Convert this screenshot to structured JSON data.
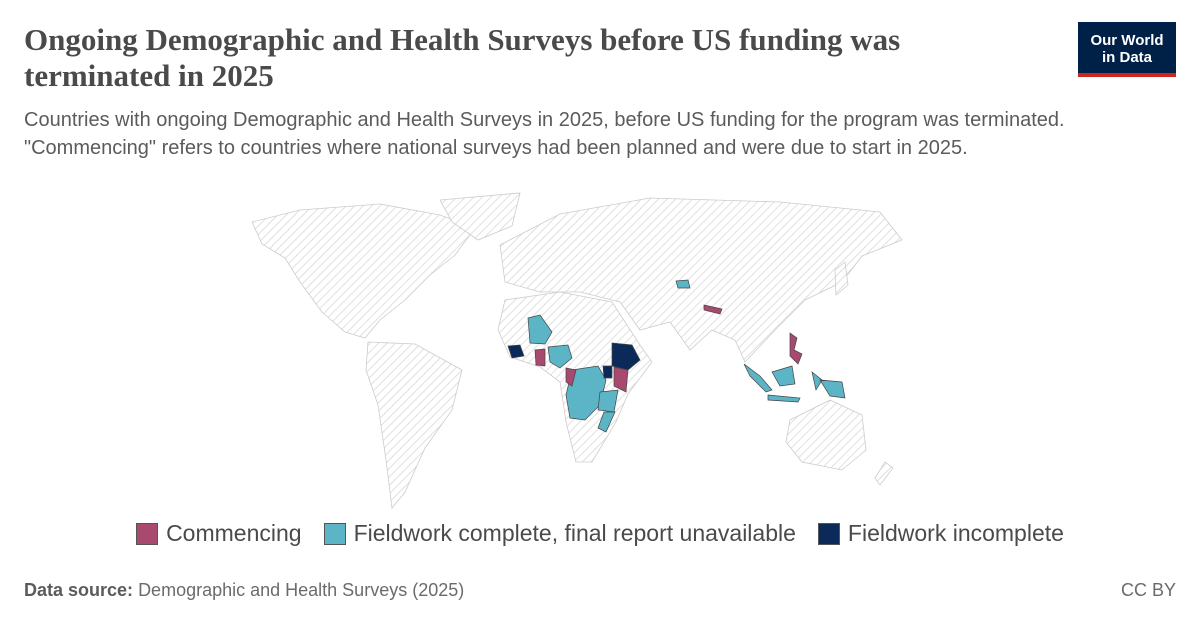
{
  "header": {
    "title": "Ongoing Demographic and Health Surveys before US funding was terminated in 2025",
    "subtitle": "Countries with ongoing Demographic and Health Surveys in 2025, before US funding for the program was terminated. \"Commencing\" refers to countries where national surveys had been planned and were due to start in 2025.",
    "logo": [
      "Our World",
      "in Data"
    ]
  },
  "legend": {
    "items": [
      {
        "label": "Commencing",
        "color": "#a8496f"
      },
      {
        "label": "Fieldwork complete, final report unavailable",
        "color": "#5cb5c6"
      },
      {
        "label": "Fieldwork incomplete",
        "color": "#0b2a5a"
      }
    ]
  },
  "footer": {
    "source_label": "Data source:",
    "source": "Demographic and Health Surveys (2025)",
    "license": "CC BY"
  }
}
